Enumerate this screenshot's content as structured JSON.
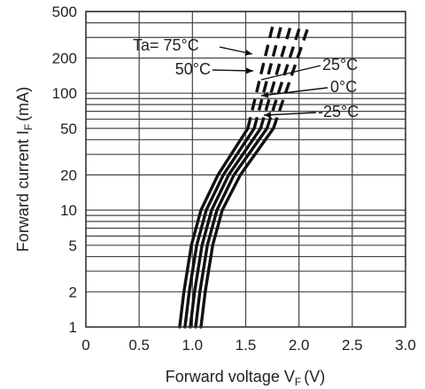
{
  "chart_data": {
    "type": "line",
    "xlabel": "Forward voltage V",
    "xlabel_sub": "F",
    "xlabel_unit": "(V)",
    "ylabel": "Forward current I",
    "ylabel_sub": "F",
    "ylabel_unit": "(mA)",
    "xlim": [
      0,
      3.0
    ],
    "ylim": [
      1,
      500
    ],
    "y_scale": "log",
    "grid": true,
    "x_ticks": [
      0,
      0.5,
      1.0,
      1.5,
      2.0,
      2.5,
      3.0
    ],
    "x_tick_labels": [
      "0",
      "0.5",
      "1.0",
      "1.5",
      "2.0",
      "2.5",
      "3.0"
    ],
    "y_ticks": [
      1,
      2,
      5,
      10,
      20,
      50,
      100,
      200,
      500
    ],
    "y_tick_labels": [
      "1",
      "2",
      "5",
      "10",
      "20",
      "50",
      "100",
      "200",
      "500"
    ],
    "dashed_above": 50,
    "series": [
      {
        "name": "Ta= 75°C",
        "x": [
          0.88,
          0.92,
          0.99,
          1.08,
          1.24,
          1.52,
          1.76
        ],
        "y": [
          1,
          2,
          5,
          10,
          20,
          50,
          400
        ]
      },
      {
        "name": "50°C",
        "x": [
          0.93,
          0.97,
          1.04,
          1.13,
          1.29,
          1.58,
          1.84
        ],
        "y": [
          1,
          2,
          5,
          10,
          20,
          50,
          400
        ]
      },
      {
        "name": "25°C",
        "x": [
          0.98,
          1.02,
          1.09,
          1.18,
          1.34,
          1.64,
          1.93
        ],
        "y": [
          1,
          2,
          5,
          10,
          20,
          50,
          400
        ]
      },
      {
        "name": "0°C",
        "x": [
          1.03,
          1.07,
          1.14,
          1.23,
          1.39,
          1.7,
          2.02
        ],
        "y": [
          1,
          2,
          5,
          10,
          20,
          50,
          400
        ]
      },
      {
        "name": "-25°C",
        "x": [
          1.08,
          1.12,
          1.19,
          1.28,
          1.45,
          1.76,
          2.1
        ],
        "y": [
          1,
          2,
          5,
          10,
          20,
          50,
          400
        ]
      }
    ]
  }
}
